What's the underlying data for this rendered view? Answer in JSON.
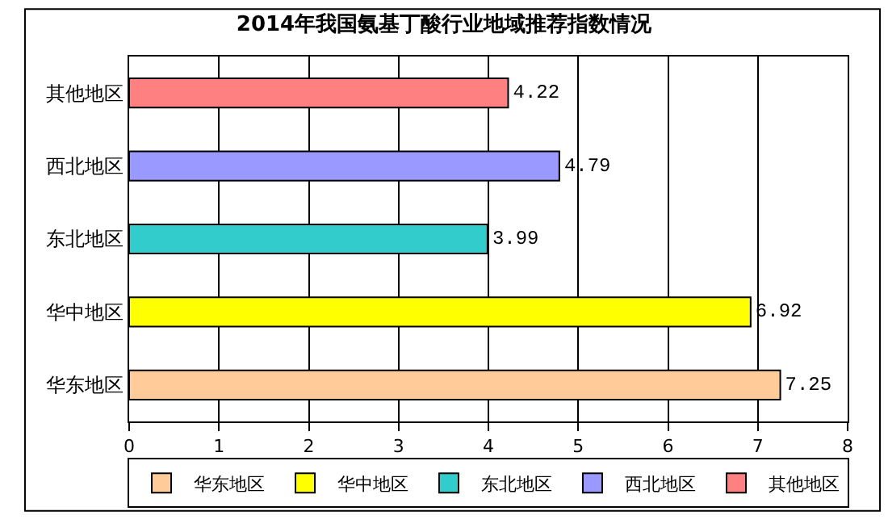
{
  "chart_data": {
    "type": "bar",
    "orientation": "horizontal",
    "title": "2014年我国氨基丁酸行业地域推荐指数情况",
    "categories": [
      "其他地区",
      "西北地区",
      "东北地区",
      "华中地区",
      "华东地区"
    ],
    "series": [
      {
        "name": "华东地区",
        "color": "#ffcc99",
        "values": [
          null,
          null,
          null,
          null,
          7.25
        ]
      },
      {
        "name": "华中地区",
        "color": "#ffff00",
        "values": [
          null,
          null,
          null,
          6.92,
          null
        ]
      },
      {
        "name": "东北地区",
        "color": "#33cccc",
        "values": [
          null,
          null,
          3.99,
          null,
          null
        ]
      },
      {
        "name": "西北地区",
        "color": "#9999ff",
        "values": [
          null,
          4.79,
          null,
          null,
          null
        ]
      },
      {
        "name": "其他地区",
        "color": "#ff8080",
        "values": [
          4.22,
          null,
          null,
          null,
          null
        ]
      }
    ],
    "xlim": [
      0,
      8
    ],
    "xticks": [
      0,
      1,
      2,
      3,
      4,
      5,
      6,
      7,
      8
    ],
    "grid": "x",
    "legend": "bottom",
    "data_labels": true
  }
}
